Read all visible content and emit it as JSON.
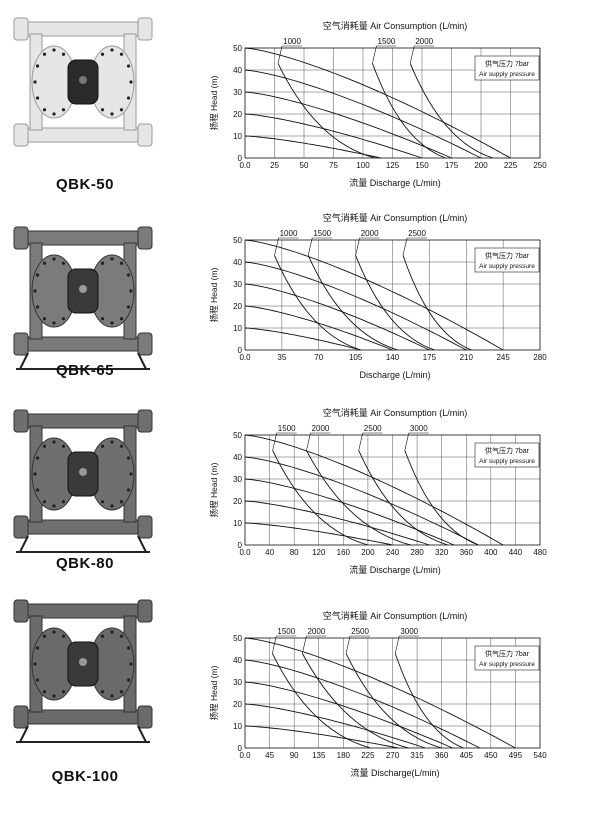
{
  "common": {
    "air_supply_label": "Air supply pressure"
  },
  "pumps": [
    {
      "model": "QBK-50",
      "body_color": "#e6e6e6",
      "chart_title_cn": "空气消耗量",
      "chart_title_en": "Air Consumption (L/min)",
      "ylabel_cn": "扬程",
      "ylabel_en": "Head (m)",
      "xlabel_cn": "流量",
      "xlabel_en": "Discharge (L/min)",
      "pressure_cn": "供气压力",
      "pressure_value": "7bar",
      "chart_data": {
        "type": "line",
        "xlim": [
          0,
          250
        ],
        "ylim": [
          0,
          50
        ],
        "x_ticks": [
          "0.0",
          "25",
          "50",
          "75",
          "100",
          "125",
          "150",
          "175",
          "200",
          "225",
          "250"
        ],
        "y_ticks": [
          "0",
          "10",
          "20",
          "30",
          "40",
          "50"
        ],
        "air_consumption_labels": [
          "1000",
          "1500",
          "2000"
        ],
        "pressure_curves": [
          {
            "shutoff": 50,
            "max_flow": 225
          },
          {
            "shutoff": 40,
            "max_flow": 200
          },
          {
            "shutoff": 30,
            "max_flow": 175
          },
          {
            "shutoff": 20,
            "max_flow": 150
          },
          {
            "shutoff": 10,
            "max_flow": 115
          }
        ],
        "air_curves": [
          {
            "label": "1000",
            "x_top": 28,
            "x_bottom": 110
          },
          {
            "label": "1500",
            "x_top": 108,
            "x_bottom": 170
          },
          {
            "label": "2000",
            "x_top": 140,
            "x_bottom": 210
          }
        ]
      }
    },
    {
      "model": "QBK-65",
      "body_color": "#7b7b7b",
      "chart_title_cn": "空气消耗量",
      "chart_title_en": "Air Consumption (L/min)",
      "ylabel_cn": "扬程",
      "ylabel_en": "Head (m)",
      "xlabel_cn": "",
      "xlabel_en": "Discharge (L/min)",
      "pressure_cn": "供气压力",
      "pressure_value": "7bar",
      "chart_data": {
        "type": "line",
        "xlim": [
          0,
          280
        ],
        "ylim": [
          0,
          50
        ],
        "x_ticks": [
          "0.0",
          "35",
          "70",
          "105",
          "140",
          "175",
          "210",
          "245",
          "280"
        ],
        "y_ticks": [
          "0",
          "10",
          "20",
          "30",
          "40",
          "50"
        ],
        "air_consumption_labels": [
          "1000",
          "1500",
          "2000",
          "2500"
        ],
        "pressure_curves": [
          {
            "shutoff": 50,
            "max_flow": 245
          },
          {
            "shutoff": 40,
            "max_flow": 210
          },
          {
            "shutoff": 30,
            "max_flow": 175
          },
          {
            "shutoff": 20,
            "max_flow": 140
          },
          {
            "shutoff": 10,
            "max_flow": 110
          }
        ],
        "air_curves": [
          {
            "label": "1000",
            "x_top": 28,
            "x_bottom": 110
          },
          {
            "label": "1500",
            "x_top": 60,
            "x_bottom": 145
          },
          {
            "label": "2000",
            "x_top": 105,
            "x_bottom": 180
          },
          {
            "label": "2500",
            "x_top": 150,
            "x_bottom": 215
          }
        ]
      }
    },
    {
      "model": "QBK-80",
      "body_color": "#6f6f6f",
      "chart_title_cn": "空气消耗量",
      "chart_title_en": "Air Consumption (L/min)",
      "ylabel_cn": "扬程",
      "ylabel_en": "Head (m)",
      "xlabel_cn": "流量",
      "xlabel_en": "Discharge (L/min)",
      "pressure_cn": "供气压力",
      "pressure_value": "7bar",
      "chart_data": {
        "type": "line",
        "xlim": [
          0,
          480
        ],
        "ylim": [
          0,
          50
        ],
        "x_ticks": [
          "0.0",
          "40",
          "80",
          "120",
          "160",
          "200",
          "240",
          "280",
          "320",
          "360",
          "400",
          "440",
          "480"
        ],
        "y_ticks": [
          "0",
          "10",
          "20",
          "30",
          "40",
          "50"
        ],
        "air_consumption_labels": [
          "1500",
          "2000",
          "2500",
          "3000"
        ],
        "pressure_curves": [
          {
            "shutoff": 50,
            "max_flow": 420
          },
          {
            "shutoff": 40,
            "max_flow": 380
          },
          {
            "shutoff": 30,
            "max_flow": 340
          },
          {
            "shutoff": 20,
            "max_flow": 300
          },
          {
            "shutoff": 10,
            "max_flow": 240
          }
        ],
        "air_curves": [
          {
            "label": "1500",
            "x_top": 45,
            "x_bottom": 200
          },
          {
            "label": "2000",
            "x_top": 100,
            "x_bottom": 270
          },
          {
            "label": "2500",
            "x_top": 185,
            "x_bottom": 330
          },
          {
            "label": "3000",
            "x_top": 260,
            "x_bottom": 380
          }
        ]
      }
    },
    {
      "model": "QBK-100",
      "body_color": "#6a6a6a",
      "chart_title_cn": "空气消耗量",
      "chart_title_en": "Air Consumption (L/min)",
      "ylabel_cn": "扬程",
      "ylabel_en": "Head (m)",
      "xlabel_cn": "流量",
      "xlabel_en": "Discharge(L/min)",
      "pressure_cn": "供气压力",
      "pressure_value": "7bar",
      "chart_data": {
        "type": "line",
        "xlim": [
          0,
          540
        ],
        "ylim": [
          0,
          50
        ],
        "x_ticks": [
          "0.0",
          "45",
          "90",
          "135",
          "180",
          "225",
          "270",
          "315",
          "360",
          "405",
          "450",
          "495",
          "540"
        ],
        "y_ticks": [
          "0",
          "10",
          "20",
          "30",
          "40",
          "50"
        ],
        "air_consumption_labels": [
          "1500",
          "2000",
          "2500",
          "3000"
        ],
        "pressure_curves": [
          {
            "shutoff": 50,
            "max_flow": 495
          },
          {
            "shutoff": 40,
            "max_flow": 430
          },
          {
            "shutoff": 30,
            "max_flow": 380
          },
          {
            "shutoff": 20,
            "max_flow": 330
          },
          {
            "shutoff": 10,
            "max_flow": 280
          }
        ],
        "air_curves": [
          {
            "label": "1500",
            "x_top": 50,
            "x_bottom": 230
          },
          {
            "label": "2000",
            "x_top": 105,
            "x_bottom": 300
          },
          {
            "label": "2500",
            "x_top": 185,
            "x_bottom": 360
          },
          {
            "label": "3000",
            "x_top": 275,
            "x_bottom": 400
          }
        ]
      }
    }
  ]
}
